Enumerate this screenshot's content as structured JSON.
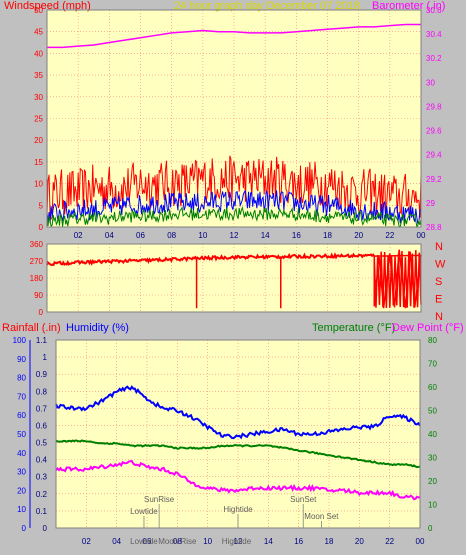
{
  "header": {
    "left_label": "Windspeed (mph)",
    "center_label": "24 hour graph day    December 07 2018",
    "right_label": "Barometer (.in)"
  },
  "colors": {
    "panel_bg": "#ffffc0",
    "frame_bg": "#c0c0c0",
    "red": "#ff0000",
    "blue": "#0000ff",
    "green": "#008000",
    "magenta": "#ff00ff",
    "yellow_label": "#d8d800",
    "grid": "#ff8080"
  },
  "chart_data": [
    {
      "type": "line",
      "name": "wind-barometer",
      "left_axis": {
        "label": "Windspeed (mph)",
        "ylim": [
          0,
          50
        ],
        "ticks": [
          "0",
          "5",
          "10",
          "15",
          "20",
          "25",
          "30",
          "35",
          "40",
          "45",
          "50"
        ]
      },
      "right_axis": {
        "label": "Barometer (.in)",
        "ylim": [
          28.8,
          30.6
        ],
        "ticks": [
          "28.8",
          "29",
          "29.2",
          "29.4",
          "29.6",
          "29.8",
          "30",
          "30.2",
          "30.4",
          "30.6"
        ]
      },
      "x_ticks": [
        "02",
        "04",
        "06",
        "08",
        "10",
        "12",
        "14",
        "16",
        "18",
        "20",
        "22",
        "00"
      ],
      "xlim": [
        0,
        24
      ],
      "series": [
        {
          "color": "red",
          "axis": "left",
          "x": [
            0,
            1,
            2,
            3,
            4,
            5,
            6,
            7,
            8,
            9,
            10,
            11,
            12,
            13,
            14,
            15,
            16,
            17,
            18,
            19,
            20,
            21,
            22,
            23,
            24
          ],
          "values": [
            7,
            8,
            8,
            9,
            9,
            9,
            10,
            10,
            10,
            10,
            11,
            11,
            11,
            11,
            11,
            11,
            10,
            10,
            10,
            9,
            8,
            8,
            7,
            7,
            7
          ]
        },
        {
          "color": "blue",
          "axis": "left",
          "x": [
            0,
            1,
            2,
            3,
            4,
            5,
            6,
            7,
            8,
            9,
            10,
            11,
            12,
            13,
            14,
            15,
            16,
            17,
            18,
            19,
            20,
            21,
            22,
            23,
            24
          ],
          "values": [
            3,
            3.5,
            4,
            4,
            4.5,
            5,
            5,
            5.5,
            5.5,
            5.5,
            5.5,
            6,
            6,
            6,
            6,
            6,
            5.5,
            5,
            5,
            4.5,
            4,
            3.5,
            3.5,
            3,
            3
          ]
        },
        {
          "color": "green",
          "axis": "left",
          "x": [
            0,
            1,
            2,
            3,
            4,
            5,
            6,
            7,
            8,
            9,
            10,
            11,
            12,
            13,
            14,
            15,
            16,
            17,
            18,
            19,
            20,
            21,
            22,
            23,
            24
          ],
          "values": [
            1.5,
            1.5,
            2,
            2,
            2,
            2.5,
            2.5,
            2.5,
            3,
            3,
            3,
            3,
            3,
            3,
            3,
            3,
            3,
            2.5,
            2.5,
            2,
            2,
            2,
            1.5,
            1.5,
            1.5
          ]
        },
        {
          "color": "magenta",
          "axis": "right",
          "x": [
            0,
            1,
            2,
            3,
            4,
            5,
            6,
            7,
            8,
            9,
            10,
            11,
            12,
            13,
            14,
            15,
            16,
            17,
            18,
            19,
            20,
            21,
            22,
            23,
            24
          ],
          "values": [
            30.29,
            30.29,
            30.3,
            30.31,
            30.33,
            30.35,
            30.37,
            30.39,
            30.41,
            30.42,
            30.43,
            30.42,
            30.42,
            30.41,
            30.41,
            30.41,
            30.42,
            30.43,
            30.44,
            30.45,
            30.46,
            30.46,
            30.47,
            30.48,
            30.48
          ]
        }
      ]
    },
    {
      "type": "scatter",
      "name": "wind-direction",
      "left_axis": {
        "ylim": [
          0,
          360
        ],
        "ticks": [
          "0",
          "90",
          "180",
          "270",
          "360"
        ]
      },
      "right_labels": [
        "N",
        "W",
        "S",
        "E",
        "N"
      ],
      "xlim": [
        0,
        24
      ],
      "series": [
        {
          "color": "red",
          "baseline": [
            [
              0,
              255
            ],
            [
              2,
              262
            ],
            [
              4,
              268
            ],
            [
              6,
              272
            ],
            [
              8,
              278
            ],
            [
              9,
              282
            ],
            [
              10,
              285
            ],
            [
              12,
              290
            ],
            [
              14,
              292
            ],
            [
              16,
              294
            ],
            [
              18,
              296
            ],
            [
              20,
              298
            ],
            [
              22,
              300
            ],
            [
              24,
              300
            ]
          ],
          "drops": [
            [
              9.6,
              20
            ],
            [
              15,
              20
            ],
            [
              21,
              30
            ],
            [
              21.3,
              300
            ],
            [
              21.6,
              20
            ],
            [
              22,
              310
            ],
            [
              22.3,
              25
            ],
            [
              22.6,
              330
            ],
            [
              23,
              20
            ],
            [
              23.3,
              320
            ],
            [
              23.6,
              25
            ],
            [
              24,
              300
            ]
          ]
        }
      ]
    },
    {
      "type": "line",
      "name": "rain-humidity-temp",
      "top_labels": {
        "rainfall": "Rainfall (.in)",
        "humidity": "Humidity (%)",
        "temperature": "Temperature (°F)",
        "dewpoint": "Dew Point (°F)"
      },
      "humidity_axis": {
        "ylim": [
          0,
          100
        ],
        "ticks": [
          "0",
          "10",
          "20",
          "30",
          "40",
          "50",
          "60",
          "70",
          "80",
          "90",
          "100"
        ]
      },
      "rain_axis": {
        "ylim": [
          0,
          1.1
        ],
        "ticks": [
          "0",
          "0.1",
          "0.2",
          "0.3",
          "0.4",
          "0.5",
          "0.6",
          "0.7",
          "0.8",
          "0.9",
          "1",
          "1.1"
        ]
      },
      "temp_axis": {
        "ylim": [
          0,
          80
        ],
        "ticks": [
          "0",
          "10",
          "20",
          "30",
          "40",
          "50",
          "60",
          "70",
          "80"
        ]
      },
      "x_ticks": [
        "02",
        "04",
        "06",
        "08",
        "10",
        "12",
        "14",
        "16",
        "18",
        "20",
        "22",
        "00"
      ],
      "xlim": [
        0,
        24
      ],
      "series": [
        {
          "color": "blue",
          "axis": "temp",
          "x": [
            0,
            1,
            2,
            3,
            4,
            5,
            6,
            7,
            8,
            9,
            10,
            11,
            12,
            13,
            14,
            15,
            16,
            17,
            18,
            19,
            20,
            21,
            22,
            23,
            24
          ],
          "values": [
            52,
            51,
            51,
            54,
            58,
            60,
            55,
            51,
            50,
            47,
            43,
            39,
            39,
            40,
            41,
            42,
            40,
            40,
            41,
            42,
            43,
            43,
            48,
            47,
            44
          ]
        },
        {
          "color": "green",
          "axis": "temp",
          "x": [
            0,
            1,
            2,
            3,
            4,
            5,
            6,
            7,
            8,
            9,
            10,
            11,
            12,
            13,
            14,
            15,
            16,
            17,
            18,
            19,
            20,
            21,
            22,
            23,
            24
          ],
          "values": [
            37,
            37,
            37,
            36,
            36,
            35,
            35,
            35,
            34,
            34,
            34,
            35,
            35,
            35,
            35,
            34,
            33,
            32,
            31,
            30,
            29,
            28,
            27,
            27,
            26
          ]
        },
        {
          "color": "magenta",
          "axis": "temp",
          "x": [
            0,
            1,
            2,
            3,
            4,
            5,
            6,
            7,
            8,
            9,
            10,
            11,
            12,
            13,
            14,
            15,
            16,
            17,
            18,
            19,
            20,
            21,
            22,
            23,
            24
          ],
          "values": [
            25,
            25,
            25,
            26,
            27,
            28,
            26,
            25,
            23,
            19,
            17,
            16,
            16,
            17,
            17,
            17,
            17,
            17,
            16,
            16,
            15,
            15,
            15,
            13,
            13
          ]
        }
      ],
      "annotations": [
        {
          "text": "SunRise",
          "x": 6.8,
          "level": 18
        },
        {
          "text": "Lowtide",
          "x": 5.8,
          "level": 6
        },
        {
          "text": "Moon Rise",
          "x": 8.0,
          "level": -4
        },
        {
          "text": "Hightide",
          "x": 12.0,
          "level": 8
        },
        {
          "text": "SunSet",
          "x": 16.3,
          "level": 18
        },
        {
          "text": "Moon Set",
          "x": 17.5,
          "level": 1
        },
        {
          "text": "Lowtide",
          "x": 5.8,
          "level": -16
        },
        {
          "text": "Hightide",
          "x": 11.9,
          "level": -16
        }
      ]
    }
  ]
}
